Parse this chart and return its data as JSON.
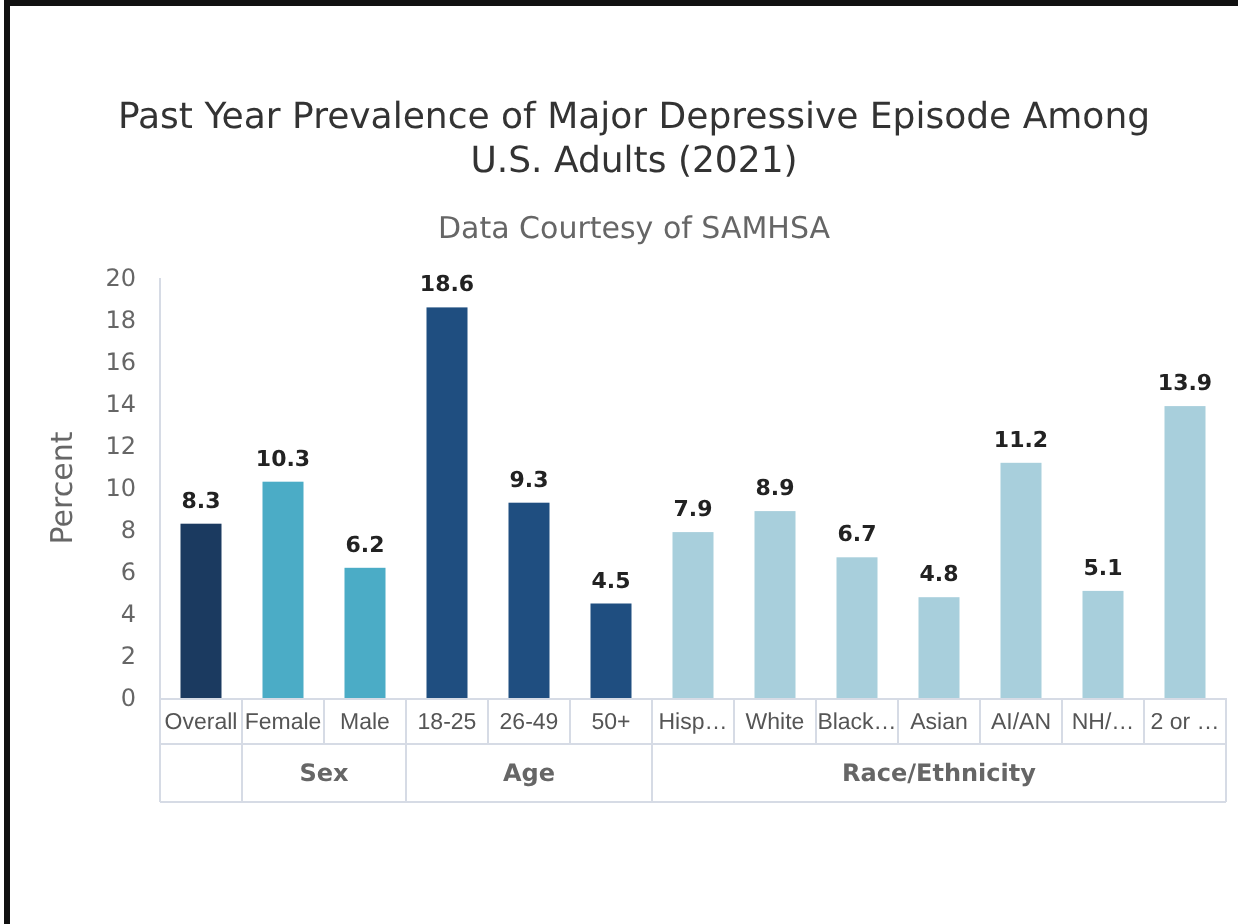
{
  "chart_data": {
    "type": "bar",
    "title": "Past Year Prevalence of Major Depressive Episode Among U.S. Adults (2021)",
    "subtitle": "Data Courtesy of SAMHSA",
    "ylabel": "Percent",
    "categories": [
      "Overall",
      "Female",
      "Male",
      "18-25",
      "26-49",
      "50+",
      "Hisp…",
      "White",
      "Black…",
      "Asian",
      "AI/AN",
      "NH/…",
      "2 or …"
    ],
    "values": [
      8.3,
      10.3,
      6.2,
      18.6,
      9.3,
      4.5,
      7.9,
      8.9,
      6.7,
      4.8,
      11.2,
      5.1,
      13.9
    ],
    "colors": [
      "#1b3a60",
      "#4bacc6",
      "#4bacc6",
      "#1f4e80",
      "#1f4e80",
      "#1f4e80",
      "#a8cfdc",
      "#a8cfdc",
      "#a8cfdc",
      "#a8cfdc",
      "#a8cfdc",
      "#a8cfdc",
      "#a8cfdc"
    ],
    "ylim": [
      0,
      20
    ],
    "yticks": [
      0,
      2,
      4,
      6,
      8,
      10,
      12,
      14,
      16,
      18,
      20
    ],
    "data_labels": true,
    "annotations": [
      "Sex",
      "Age",
      "Race/Ethnicity"
    ]
  }
}
